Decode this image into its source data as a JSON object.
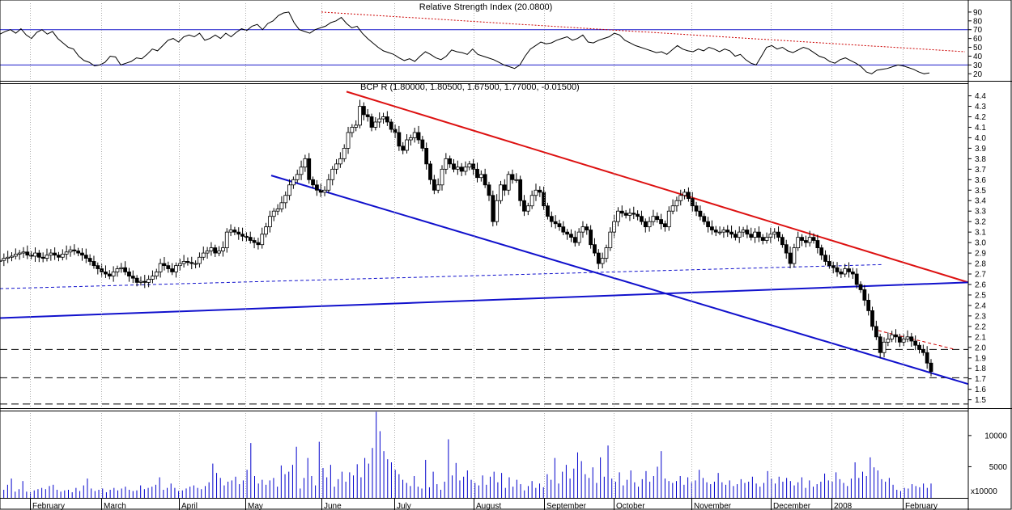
{
  "chart_data": [
    {
      "type": "line",
      "panel": "rsi",
      "title": "Relative Strength Index (20.0800)",
      "yticks": [
        20,
        30,
        40,
        50,
        60,
        70,
        80,
        90
      ],
      "ylim": [
        12,
        100
      ],
      "reference_lines": [
        30,
        70
      ],
      "series": [
        {
          "values": [
            65,
            68,
            70,
            66,
            71,
            64,
            60,
            67,
            70,
            65,
            68,
            60,
            55,
            50,
            48,
            40,
            35,
            33,
            29,
            30,
            33,
            40,
            39,
            30,
            32,
            34,
            38,
            37,
            42,
            48,
            46,
            52,
            58,
            60,
            56,
            62,
            64,
            62,
            66,
            58,
            60,
            64,
            60,
            66,
            62,
            67,
            71,
            69,
            74,
            76,
            70,
            77,
            80,
            86,
            89,
            90,
            78,
            70,
            68,
            66,
            70,
            72,
            74,
            78,
            80,
            84,
            77,
            72,
            74,
            66,
            60,
            55,
            50,
            46,
            44,
            42,
            38,
            35,
            37,
            34,
            40,
            45,
            42,
            38,
            36,
            40,
            47,
            45,
            44,
            42,
            48,
            42,
            40,
            38,
            36,
            33,
            30,
            28,
            26,
            30,
            40,
            48,
            52,
            56,
            54,
            55,
            58,
            60,
            62,
            58,
            60,
            64,
            56,
            55,
            58,
            60,
            62,
            66,
            64,
            58,
            55,
            52,
            50,
            48,
            46,
            44,
            45,
            42,
            47,
            52,
            48,
            46,
            45,
            48,
            46,
            50,
            48,
            45,
            48,
            46,
            40,
            42,
            36,
            32,
            30,
            40,
            50,
            52,
            48,
            50,
            46,
            44,
            47,
            50,
            48,
            44,
            40,
            38,
            34,
            32,
            36,
            38,
            35,
            32,
            28,
            22,
            20,
            24,
            25,
            26,
            28,
            30,
            29,
            27,
            25,
            22,
            20,
            21
          ]
        }
      ],
      "trendline": {
        "style": "dotted",
        "color": "#cc0000",
        "from": 90,
        "to": 45
      }
    },
    {
      "type": "candlestick",
      "panel": "price",
      "title": "BCP R (1.80000, 1.80500, 1.67500, 1.77000, -0.01500)",
      "yticks": [
        1.5,
        1.6,
        1.7,
        1.8,
        1.9,
        2.0,
        2.1,
        2.2,
        2.3,
        2.4,
        2.5,
        2.6,
        2.7,
        2.8,
        2.9,
        3.0,
        3.1,
        3.2,
        3.3,
        3.4,
        3.5,
        3.6,
        3.7,
        3.8,
        3.9,
        4.0,
        4.1,
        4.2,
        4.3,
        4.4
      ],
      "ylim": [
        1.42,
        4.52
      ],
      "series": [
        {
          "name": "close",
          "values": [
            2.83,
            2.85,
            2.86,
            2.87,
            2.89,
            2.9,
            2.91,
            2.88,
            2.87,
            2.9,
            2.86,
            2.85,
            2.88,
            2.9,
            2.88,
            2.86,
            2.89,
            2.91,
            2.93,
            2.92,
            2.9,
            2.88,
            2.85,
            2.82,
            2.78,
            2.75,
            2.72,
            2.7,
            2.68,
            2.72,
            2.75,
            2.76,
            2.72,
            2.68,
            2.66,
            2.62,
            2.63,
            2.62,
            2.65,
            2.68,
            2.72,
            2.8,
            2.78,
            2.75,
            2.72,
            2.78,
            2.8,
            2.82,
            2.81,
            2.8,
            2.8,
            2.86,
            2.9,
            2.92,
            2.95,
            2.9,
            2.92,
            2.95,
            3.1,
            3.12,
            3.1,
            3.08,
            3.06,
            3.05,
            3.02,
            3.0,
            2.98,
            3.08,
            3.15,
            3.25,
            3.3,
            3.32,
            3.38,
            3.45,
            3.55,
            3.6,
            3.65,
            3.72,
            3.8,
            3.6,
            3.55,
            3.5,
            3.48,
            3.5,
            3.6,
            3.7,
            3.75,
            3.8,
            3.9,
            4.05,
            4.1,
            4.12,
            4.3,
            4.22,
            4.2,
            4.1,
            4.15,
            4.18,
            4.2,
            4.15,
            4.08,
            4.05,
            3.92,
            3.88,
            3.98,
            4.0,
            4.05,
            3.98,
            3.9,
            3.75,
            3.6,
            3.5,
            3.55,
            3.7,
            3.8,
            3.75,
            3.7,
            3.72,
            3.68,
            3.72,
            3.75,
            3.7,
            3.62,
            3.65,
            3.55,
            3.45,
            3.2,
            3.4,
            3.55,
            3.5,
            3.65,
            3.6,
            3.6,
            3.4,
            3.3,
            3.35,
            3.45,
            3.5,
            3.48,
            3.35,
            3.25,
            3.2,
            3.18,
            3.15,
            3.1,
            3.08,
            3.05,
            3.0,
            3.1,
            3.15,
            3.12,
            2.98,
            2.9,
            2.8,
            2.85,
            2.95,
            3.1,
            3.2,
            3.3,
            3.28,
            3.26,
            3.28,
            3.27,
            3.25,
            3.2,
            3.15,
            3.2,
            3.25,
            3.22,
            3.18,
            3.15,
            3.3,
            3.35,
            3.4,
            3.45,
            3.48,
            3.42,
            3.35,
            3.3,
            3.25,
            3.2,
            3.15,
            3.12,
            3.1,
            3.1,
            3.12,
            3.1,
            3.08,
            3.05,
            3.1,
            3.12,
            3.08,
            3.05,
            3.1,
            3.05,
            3.02,
            3.05,
            3.08,
            3.1,
            3.05,
            2.98,
            2.9,
            2.8,
            2.95,
            3.05,
            3.02,
            3.0,
            3.05,
            3.02,
            2.95,
            2.88,
            2.82,
            2.78,
            2.76,
            2.72,
            2.7,
            2.75,
            2.72,
            2.7,
            2.6,
            2.55,
            2.45,
            2.35,
            2.2,
            2.1,
            1.95,
            2.05,
            2.08,
            2.12,
            2.1,
            2.05,
            2.08,
            2.1,
            2.06,
            2.02,
            1.98,
            1.95,
            1.85,
            1.77
          ]
        }
      ],
      "trendlines": [
        {
          "color": "#dd1111",
          "from": 4.44,
          "to": 2.62
        },
        {
          "color": "#1111cc",
          "from": 3.64,
          "to": 1.65
        },
        {
          "color": "#1111cc",
          "from": 2.28,
          "to": 2.62
        },
        {
          "color": "#1111cc",
          "style": "dashed",
          "from": 2.56,
          "to": 2.79
        },
        {
          "color": "#cc0000",
          "style": "dashed",
          "from": 2.16,
          "to": 1.98
        }
      ],
      "horizontal_lines": [
        1.98,
        1.71,
        1.46
      ]
    },
    {
      "type": "bar",
      "panel": "volume",
      "yticks": [
        5000,
        10000
      ],
      "ylim": [
        0,
        14000
      ],
      "unit_label": "x10000",
      "series": [
        {
          "values": [
            900,
            1300,
            2100,
            3100,
            1000,
            1400,
            2700,
            1000,
            900,
            1200,
            1400,
            1600,
            1400,
            1900,
            2100,
            1300,
            1000,
            1200,
            1300,
            900,
            1600,
            1100,
            2000,
            3100,
            1500,
            1100,
            1300,
            1500,
            900,
            1300,
            1600,
            1200,
            1500,
            1800,
            1300,
            1100,
            1200,
            2000,
            1400,
            1600,
            1800,
            2100,
            3300,
            1300,
            1600,
            2300,
            1600,
            1100,
            1200,
            1500,
            1800,
            2000,
            1600,
            1400,
            1900,
            2500,
            5500,
            4000,
            3200,
            2000,
            2600,
            2800,
            3400,
            2200,
            2800,
            4500,
            8800,
            3500,
            2300,
            2900,
            2100,
            2800,
            3200,
            1800,
            5200,
            3800,
            4200,
            5300,
            8200,
            1500,
            3200,
            6400,
            3500,
            2000,
            9000,
            4800,
            3300,
            5300,
            1800,
            3000,
            4200,
            2600,
            4100,
            3600,
            5400,
            3300,
            6400,
            5500,
            8000,
            13800,
            10700,
            7500,
            6200,
            5700,
            4500,
            3800,
            2900,
            2400,
            1900,
            3500,
            1800,
            1500,
            6100,
            1700,
            4200,
            2200,
            1300,
            2600,
            9400,
            3600,
            5600,
            2800,
            3400,
            4400,
            2900,
            2400,
            2000,
            3600,
            2100,
            3400,
            4200,
            2500,
            4000,
            1600,
            3300,
            1800,
            2900,
            2200,
            1200,
            1900,
            2700,
            1600,
            2300,
            1700,
            3800,
            2900,
            6400,
            2300,
            4200,
            5300,
            3100,
            4700,
            7300,
            5900,
            3800,
            3200,
            4900,
            2400,
            6500,
            3400,
            8400,
            3100,
            2600,
            4100,
            2000,
            2900,
            4400,
            2500,
            1800,
            3000,
            4300,
            2600,
            3500,
            5000,
            7500,
            3100,
            2700,
            2400,
            2700,
            3500,
            2100,
            3300,
            2500,
            2800,
            4500,
            3200,
            2500,
            2200,
            2600,
            4000,
            2500,
            2100,
            2800,
            1900,
            2200,
            3000,
            2400,
            2600,
            3400,
            2300,
            1800,
            2400,
            4300,
            3100,
            2300,
            3400,
            2600,
            3200,
            2700,
            2000,
            2500,
            3300,
            1600,
            2800,
            1800,
            2200,
            2600,
            3900,
            2800,
            2600,
            4100,
            3000,
            2400,
            1900,
            3100,
            5700,
            3200,
            4200,
            3500,
            6500,
            4900,
            4400,
            3000,
            2600,
            3200,
            2100,
            1300,
            1100,
            1600,
            1500,
            2200,
            1900,
            1700,
            2300,
            1600,
            2300
          ]
        }
      ]
    }
  ],
  "x_axis": {
    "labels": [
      "February",
      "March",
      "April",
      "May",
      "June",
      "July",
      "August",
      "September",
      "October",
      "November",
      "December",
      "2008",
      "February"
    ]
  }
}
